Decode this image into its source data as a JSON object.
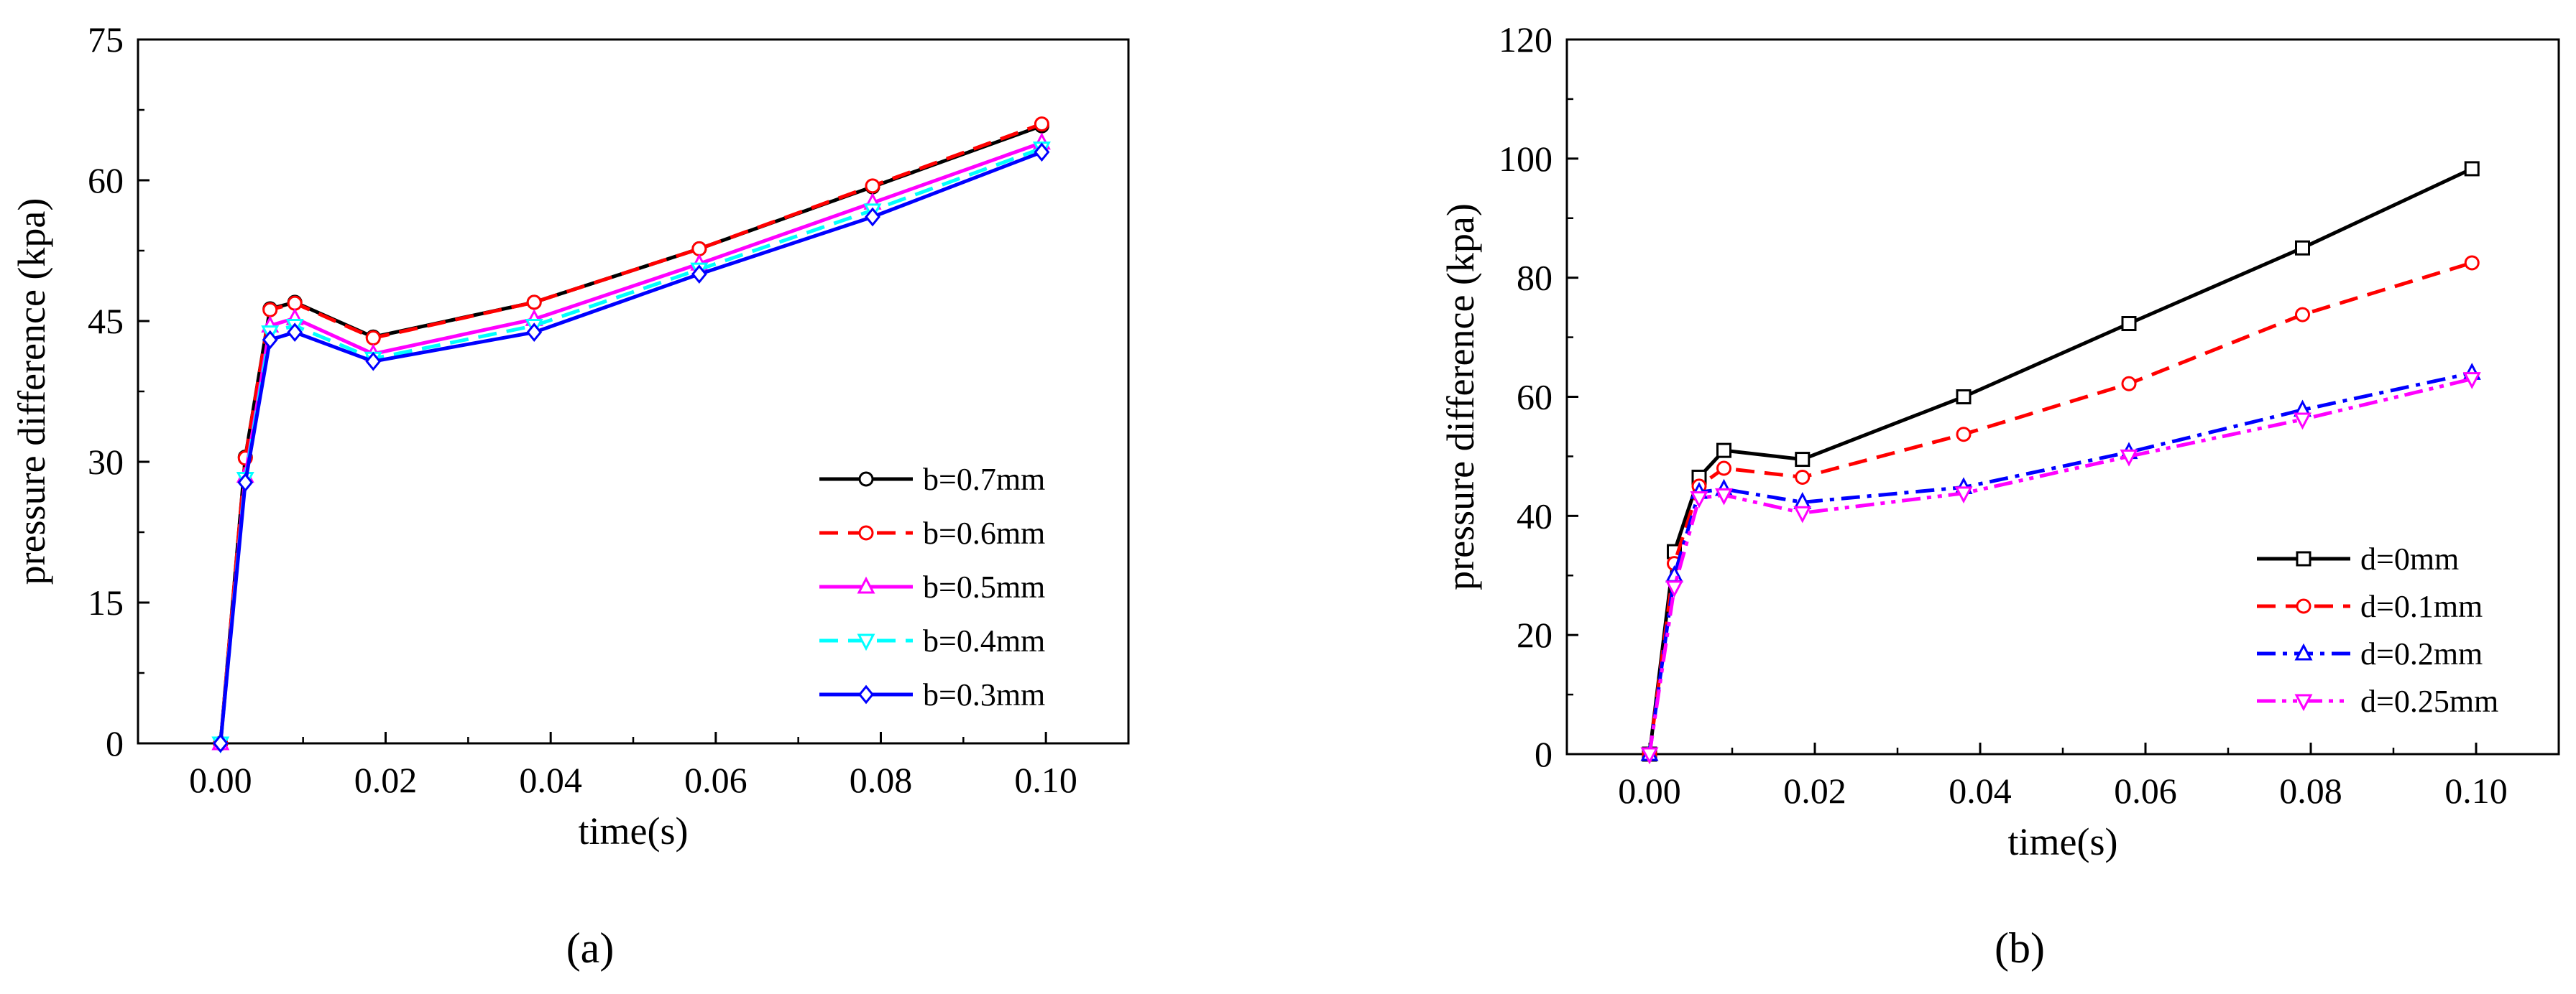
{
  "chart_data": [
    {
      "type": "line",
      "panel_label": "(a)",
      "xlabel": "time(s)",
      "ylabel": "pressure difference (kpa)",
      "xlim": [
        -0.01,
        0.11
      ],
      "ylim": [
        0,
        75
      ],
      "xticks": [
        0.0,
        0.02,
        0.04,
        0.06,
        0.08,
        0.1
      ],
      "xtick_labels": [
        "0.00",
        "0.02",
        "0.04",
        "0.06",
        "0.08",
        "0.10"
      ],
      "yticks": [
        0,
        15,
        30,
        45,
        60,
        75
      ],
      "ytick_labels": [
        "0",
        "15",
        "30",
        "45",
        "60",
        "75"
      ],
      "legend_position": "lower-right",
      "x": [
        0.0,
        0.003,
        0.006,
        0.009,
        0.0185,
        0.038,
        0.058,
        0.079,
        0.0995
      ],
      "series": [
        {
          "name": "b=0.7mm",
          "color": "#000000",
          "dash": "solid",
          "marker": "circle",
          "values": [
            0,
            30.5,
            46.3,
            47.0,
            43.3,
            47.0,
            52.7,
            59.3,
            65.8
          ]
        },
        {
          "name": "b=0.6mm",
          "color": "#ff0000",
          "dash": "dashed",
          "marker": "circle",
          "values": [
            0,
            30.4,
            46.2,
            46.9,
            43.2,
            47.0,
            52.7,
            59.4,
            66.0
          ]
        },
        {
          "name": "b=0.5mm",
          "color": "#ff00ff",
          "dash": "solid",
          "marker": "triangle-up",
          "values": [
            0,
            28.5,
            44.5,
            45.3,
            41.5,
            45.2,
            51.1,
            57.6,
            64.0
          ]
        },
        {
          "name": "b=0.4mm",
          "color": "#00ffff",
          "dash": "dashed",
          "marker": "triangle-down",
          "values": [
            0,
            28.2,
            43.8,
            44.5,
            41.0,
            44.5,
            50.5,
            56.8,
            63.4
          ]
        },
        {
          "name": "b=0.3mm",
          "color": "#0000ff",
          "dash": "solid",
          "marker": "diamond",
          "values": [
            0,
            27.8,
            43.0,
            43.8,
            40.7,
            43.8,
            50.0,
            56.1,
            63.0
          ]
        }
      ]
    },
    {
      "type": "line",
      "panel_label": "(b)",
      "xlabel": "time(s)",
      "ylabel": "pressure difference (kpa)",
      "xlim": [
        -0.01,
        0.11
      ],
      "ylim": [
        0,
        120
      ],
      "xticks": [
        0.0,
        0.02,
        0.04,
        0.06,
        0.08,
        0.1
      ],
      "xtick_labels": [
        "0.00",
        "0.02",
        "0.04",
        "0.06",
        "0.08",
        "0.10"
      ],
      "yticks": [
        0,
        20,
        40,
        60,
        80,
        100,
        120
      ],
      "ytick_labels": [
        "0",
        "20",
        "40",
        "60",
        "80",
        "100",
        "120"
      ],
      "legend_position": "lower-right",
      "x": [
        0.0,
        0.003,
        0.006,
        0.009,
        0.0185,
        0.038,
        0.058,
        0.079,
        0.0995
      ],
      "series": [
        {
          "name": "d=0mm",
          "color": "#000000",
          "dash": "solid",
          "marker": "square",
          "values": [
            0,
            34.0,
            46.5,
            51.0,
            49.5,
            60.0,
            72.3,
            85.0,
            98.3
          ]
        },
        {
          "name": "d=0.1mm",
          "color": "#ff0000",
          "dash": "dashed",
          "marker": "circle",
          "values": [
            0,
            32.0,
            45.0,
            48.0,
            46.5,
            53.7,
            62.2,
            73.8,
            82.5
          ]
        },
        {
          "name": "d=0.2mm",
          "color": "#0000ff",
          "dash": "dashdot",
          "marker": "triangle-up",
          "values": [
            0,
            30.0,
            44.0,
            44.5,
            42.3,
            44.8,
            50.7,
            57.8,
            64.0
          ]
        },
        {
          "name": "d=0.25mm",
          "color": "#ff00ff",
          "dash": "dashdotdot",
          "marker": "triangle-down",
          "values": [
            0,
            28.0,
            43.0,
            43.5,
            40.5,
            43.8,
            50.0,
            56.2,
            63.0
          ]
        }
      ]
    }
  ]
}
